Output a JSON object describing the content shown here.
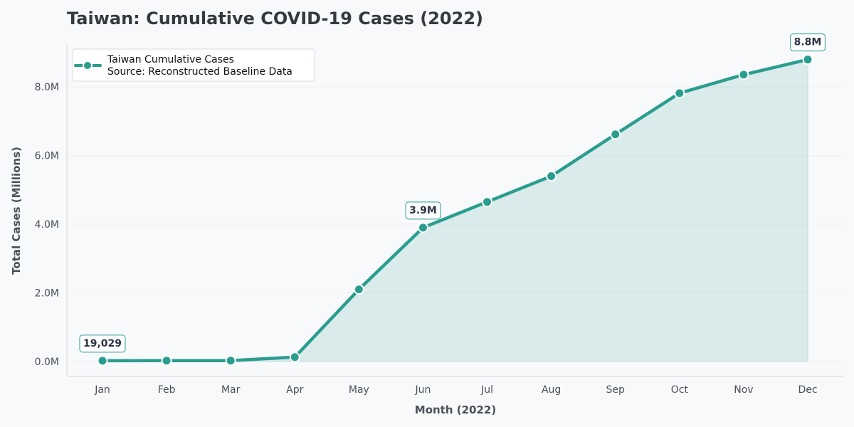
{
  "chart_data": {
    "type": "area",
    "title": "Taiwan: Cumulative COVID-19 Cases (2022)",
    "xlabel": "Month (2022)",
    "ylabel": "Total Cases (Millions)",
    "categories": [
      "Jan",
      "Feb",
      "Mar",
      "Apr",
      "May",
      "Jun",
      "Jul",
      "Aug",
      "Sep",
      "Oct",
      "Nov",
      "Dec"
    ],
    "series": [
      {
        "name": "Taiwan Cumulative Cases",
        "values": [
          19029,
          21000,
          22500,
          125000,
          2100000,
          3900000,
          4650000,
          5400000,
          6620000,
          7820000,
          8360000,
          8800000
        ]
      }
    ],
    "legend": {
      "lines": [
        "Taiwan Cumulative Cases",
        "Source: Reconstructed Baseline Data"
      ],
      "placement": "top-left"
    },
    "ylim": [
      -440000,
      9250000
    ],
    "y_ticks": [
      0,
      2000000,
      4000000,
      6000000,
      8000000
    ],
    "y_tick_labels": [
      "0.0M",
      "2.0M",
      "4.0M",
      "6.0M",
      "8.0M"
    ],
    "annotations": [
      {
        "index": 0,
        "text": "19,029"
      },
      {
        "index": 5,
        "text": "3.9M"
      },
      {
        "index": 11,
        "text": "8.8M"
      }
    ],
    "grid": true
  },
  "colors": {
    "line": "#2a9d8f",
    "fill": "#2a9d8f",
    "background": "#f8f9fb"
  }
}
